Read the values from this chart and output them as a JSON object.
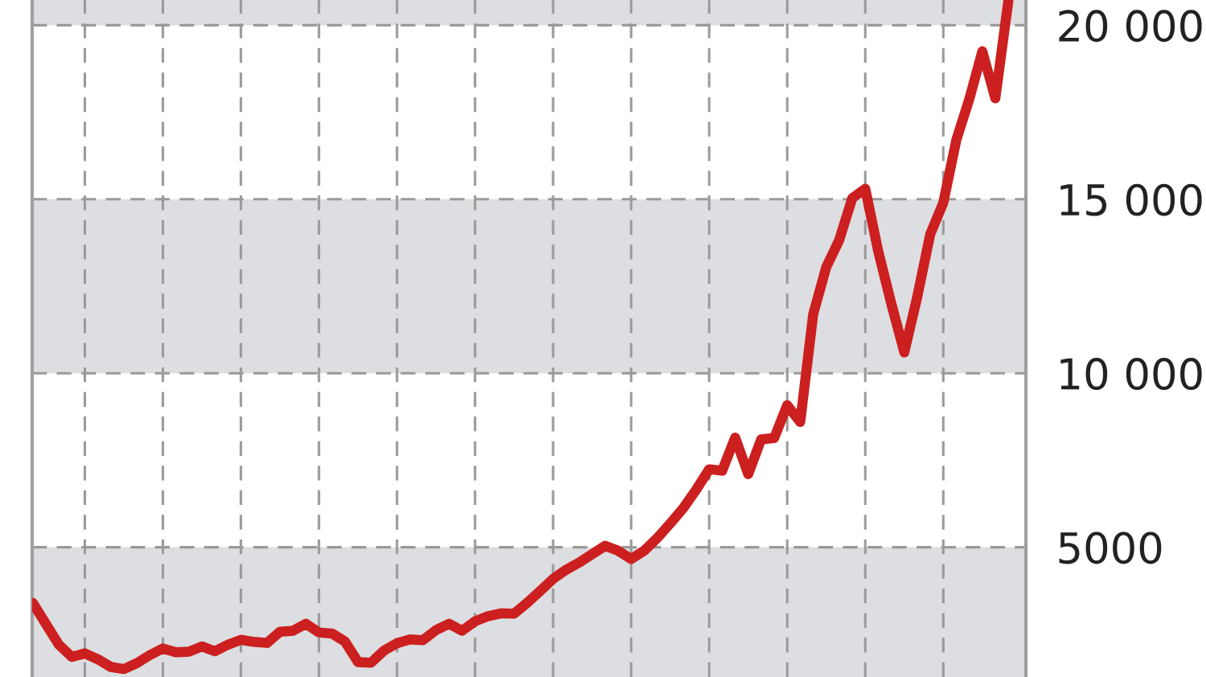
{
  "chart_data": {
    "type": "line",
    "tick_labels": "y",
    "grid": true,
    "line_style": "solid",
    "marker": "none",
    "categories": [
      null,
      null,
      null,
      null,
      null,
      null,
      null,
      null,
      null,
      null,
      null,
      null,
      null,
      null,
      null,
      null,
      null,
      null,
      null,
      null,
      null,
      null,
      null,
      null,
      null,
      null,
      null,
      null,
      null,
      null,
      null,
      null,
      null,
      null,
      null,
      null,
      null,
      null,
      null,
      null,
      null,
      null,
      null,
      null,
      null,
      null,
      null,
      null,
      null,
      null,
      null,
      null,
      null,
      null,
      null,
      null,
      null,
      null,
      null,
      null,
      null,
      null,
      null,
      null,
      null,
      null,
      null,
      null,
      null,
      null,
      null,
      null,
      null,
      null,
      null,
      null
    ],
    "series": [
      {
        "color": "#cc1f1f",
        "values": [
          3400,
          2800,
          2200,
          1850,
          1950,
          1780,
          1560,
          1500,
          1670,
          1900,
          2090,
          1980,
          2000,
          2150,
          2010,
          2200,
          2340,
          2280,
          2250,
          2570,
          2600,
          2800,
          2550,
          2520,
          2290,
          1700,
          1680,
          2030,
          2240,
          2350,
          2330,
          2620,
          2800,
          2600,
          2870,
          3020,
          3100,
          3090,
          3400,
          3740,
          4090,
          4350,
          4560,
          4800,
          5040,
          4900,
          4660,
          4900,
          5260,
          5680,
          6120,
          6650,
          7240,
          7200,
          8150,
          7100,
          8100,
          8140,
          9080,
          8600,
          11700,
          13050,
          13830,
          15030,
          15300,
          13500,
          12000,
          10600,
          12200,
          14000,
          14900,
          16700,
          17880,
          19250,
          17900,
          20700
        ]
      }
    ],
    "ylim": [
      1271,
      20725
    ],
    "yticks": [
      {
        "value": 5000,
        "label": "5000"
      },
      {
        "value": 10000,
        "label": "10 000"
      },
      {
        "value": 15000,
        "label": "15 000"
      },
      {
        "value": 20000,
        "label": "20 000"
      }
    ],
    "bands": [
      {
        "axis": "y",
        "from": 1271,
        "to": 5000,
        "color": "#dcdee1"
      },
      {
        "axis": "y",
        "from": 10000,
        "to": 15000,
        "color": "#dcdee1"
      },
      {
        "axis": "y",
        "from": 20000,
        "to": 20725,
        "color": "#dcdee1"
      }
    ]
  }
}
